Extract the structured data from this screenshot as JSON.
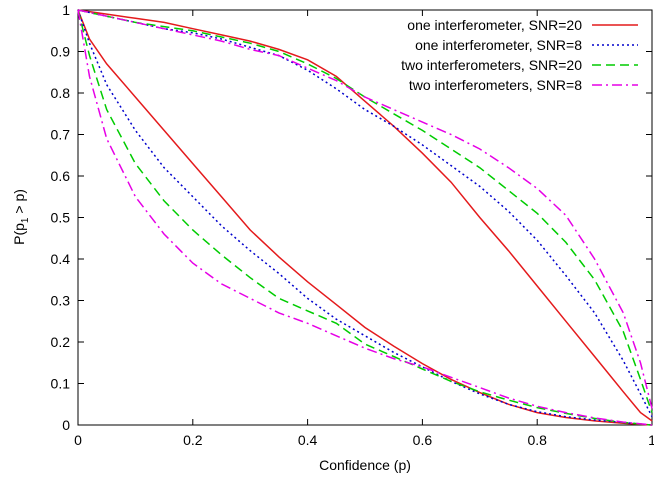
{
  "chart_data": {
    "type": "line",
    "title": "",
    "xlabel": "Confidence (p)",
    "ylabel_main": "P(p",
    "ylabel_sub": "1",
    "ylabel_tail": " > p)",
    "xlim": [
      0,
      1
    ],
    "ylim": [
      0,
      1
    ],
    "x_ticks": [
      0,
      0.2,
      0.4,
      0.6,
      0.8,
      1
    ],
    "y_ticks": [
      0,
      0.1,
      0.2,
      0.3,
      0.4,
      0.5,
      0.6,
      0.7,
      0.8,
      0.9,
      1
    ],
    "x_tick_labels": [
      "0",
      "0.2",
      "0.4",
      "0.6",
      "0.8",
      "1"
    ],
    "y_tick_labels": [
      "0",
      "0.1",
      "0.2",
      "0.3",
      "0.4",
      "0.5",
      "0.6",
      "0.7",
      "0.8",
      "0.9",
      "1"
    ],
    "legend_position": "top-right",
    "grid": false,
    "series": [
      {
        "name": "one interferometer, SNR=20",
        "color": "#e41a1c",
        "dash": "solid",
        "upper": [
          [
            0,
            1
          ],
          [
            0.05,
            0.99
          ],
          [
            0.1,
            0.98
          ],
          [
            0.15,
            0.97
          ],
          [
            0.2,
            0.955
          ],
          [
            0.25,
            0.94
          ],
          [
            0.3,
            0.925
          ],
          [
            0.35,
            0.905
          ],
          [
            0.4,
            0.88
          ],
          [
            0.45,
            0.84
          ],
          [
            0.5,
            0.78
          ],
          [
            0.55,
            0.72
          ],
          [
            0.6,
            0.655
          ],
          [
            0.65,
            0.585
          ],
          [
            0.7,
            0.5
          ],
          [
            0.75,
            0.42
          ],
          [
            0.8,
            0.335
          ],
          [
            0.85,
            0.25
          ],
          [
            0.9,
            0.165
          ],
          [
            0.95,
            0.08
          ],
          [
            0.98,
            0.03
          ],
          [
            1,
            0.01
          ]
        ],
        "lower": [
          [
            0,
            1
          ],
          [
            0.02,
            0.93
          ],
          [
            0.05,
            0.87
          ],
          [
            0.1,
            0.79
          ],
          [
            0.15,
            0.71
          ],
          [
            0.2,
            0.63
          ],
          [
            0.25,
            0.55
          ],
          [
            0.3,
            0.47
          ],
          [
            0.35,
            0.405
          ],
          [
            0.4,
            0.345
          ],
          [
            0.45,
            0.29
          ],
          [
            0.5,
            0.235
          ],
          [
            0.55,
            0.19
          ],
          [
            0.6,
            0.148
          ],
          [
            0.65,
            0.11
          ],
          [
            0.7,
            0.078
          ],
          [
            0.75,
            0.05
          ],
          [
            0.8,
            0.03
          ],
          [
            0.85,
            0.018
          ],
          [
            0.9,
            0.01
          ],
          [
            0.95,
            0.004
          ],
          [
            1,
            0
          ]
        ]
      },
      {
        "name": "one interferometer, SNR=8",
        "color": "#0000cc",
        "dash": "dotted",
        "upper": [
          [
            0,
            1
          ],
          [
            0.05,
            0.985
          ],
          [
            0.1,
            0.97
          ],
          [
            0.15,
            0.955
          ],
          [
            0.2,
            0.945
          ],
          [
            0.25,
            0.93
          ],
          [
            0.3,
            0.91
          ],
          [
            0.35,
            0.89
          ],
          [
            0.4,
            0.855
          ],
          [
            0.45,
            0.81
          ],
          [
            0.5,
            0.76
          ],
          [
            0.55,
            0.72
          ],
          [
            0.6,
            0.675
          ],
          [
            0.65,
            0.625
          ],
          [
            0.7,
            0.575
          ],
          [
            0.75,
            0.515
          ],
          [
            0.8,
            0.445
          ],
          [
            0.85,
            0.36
          ],
          [
            0.9,
            0.27
          ],
          [
            0.95,
            0.155
          ],
          [
            0.98,
            0.075
          ],
          [
            1,
            0.02
          ]
        ],
        "lower": [
          [
            0,
            1
          ],
          [
            0.02,
            0.92
          ],
          [
            0.05,
            0.82
          ],
          [
            0.1,
            0.71
          ],
          [
            0.15,
            0.62
          ],
          [
            0.2,
            0.55
          ],
          [
            0.25,
            0.48
          ],
          [
            0.3,
            0.42
          ],
          [
            0.35,
            0.365
          ],
          [
            0.4,
            0.305
          ],
          [
            0.45,
            0.255
          ],
          [
            0.5,
            0.215
          ],
          [
            0.55,
            0.175
          ],
          [
            0.6,
            0.14
          ],
          [
            0.65,
            0.105
          ],
          [
            0.7,
            0.075
          ],
          [
            0.75,
            0.05
          ],
          [
            0.8,
            0.032
          ],
          [
            0.85,
            0.02
          ],
          [
            0.9,
            0.012
          ],
          [
            0.95,
            0.006
          ],
          [
            1,
            0
          ]
        ]
      },
      {
        "name": "two interferometers, SNR=20",
        "color": "#00cc00",
        "dash": "dashed",
        "upper": [
          [
            0,
            1
          ],
          [
            0.05,
            0.985
          ],
          [
            0.1,
            0.97
          ],
          [
            0.15,
            0.96
          ],
          [
            0.2,
            0.95
          ],
          [
            0.25,
            0.935
          ],
          [
            0.3,
            0.92
          ],
          [
            0.35,
            0.9
          ],
          [
            0.4,
            0.87
          ],
          [
            0.45,
            0.835
          ],
          [
            0.5,
            0.79
          ],
          [
            0.55,
            0.75
          ],
          [
            0.6,
            0.71
          ],
          [
            0.65,
            0.665
          ],
          [
            0.7,
            0.62
          ],
          [
            0.75,
            0.565
          ],
          [
            0.8,
            0.51
          ],
          [
            0.85,
            0.44
          ],
          [
            0.9,
            0.35
          ],
          [
            0.95,
            0.225
          ],
          [
            0.98,
            0.11
          ],
          [
            1,
            0.03
          ]
        ],
        "lower": [
          [
            0,
            1
          ],
          [
            0.02,
            0.89
          ],
          [
            0.05,
            0.76
          ],
          [
            0.1,
            0.63
          ],
          [
            0.15,
            0.54
          ],
          [
            0.2,
            0.47
          ],
          [
            0.25,
            0.41
          ],
          [
            0.3,
            0.355
          ],
          [
            0.35,
            0.305
          ],
          [
            0.4,
            0.275
          ],
          [
            0.45,
            0.245
          ],
          [
            0.5,
            0.195
          ],
          [
            0.55,
            0.165
          ],
          [
            0.6,
            0.135
          ],
          [
            0.65,
            0.105
          ],
          [
            0.7,
            0.08
          ],
          [
            0.75,
            0.06
          ],
          [
            0.8,
            0.042
          ],
          [
            0.85,
            0.028
          ],
          [
            0.9,
            0.016
          ],
          [
            0.95,
            0.006
          ],
          [
            1,
            0
          ]
        ]
      },
      {
        "name": "two interferometers, SNR=8",
        "color": "#e600e6",
        "dash": "dashdot",
        "upper": [
          [
            0,
            1
          ],
          [
            0.05,
            0.985
          ],
          [
            0.1,
            0.97
          ],
          [
            0.15,
            0.955
          ],
          [
            0.2,
            0.94
          ],
          [
            0.25,
            0.925
          ],
          [
            0.3,
            0.905
          ],
          [
            0.35,
            0.89
          ],
          [
            0.4,
            0.86
          ],
          [
            0.45,
            0.83
          ],
          [
            0.5,
            0.79
          ],
          [
            0.55,
            0.76
          ],
          [
            0.6,
            0.73
          ],
          [
            0.65,
            0.7
          ],
          [
            0.7,
            0.665
          ],
          [
            0.75,
            0.62
          ],
          [
            0.8,
            0.57
          ],
          [
            0.85,
            0.505
          ],
          [
            0.9,
            0.4
          ],
          [
            0.95,
            0.27
          ],
          [
            0.98,
            0.15
          ],
          [
            1,
            0.04
          ]
        ],
        "lower": [
          [
            0,
            1
          ],
          [
            0.02,
            0.84
          ],
          [
            0.05,
            0.69
          ],
          [
            0.1,
            0.55
          ],
          [
            0.15,
            0.46
          ],
          [
            0.2,
            0.39
          ],
          [
            0.25,
            0.34
          ],
          [
            0.3,
            0.305
          ],
          [
            0.35,
            0.27
          ],
          [
            0.4,
            0.245
          ],
          [
            0.45,
            0.215
          ],
          [
            0.5,
            0.185
          ],
          [
            0.55,
            0.16
          ],
          [
            0.6,
            0.14
          ],
          [
            0.65,
            0.115
          ],
          [
            0.7,
            0.09
          ],
          [
            0.75,
            0.065
          ],
          [
            0.8,
            0.045
          ],
          [
            0.85,
            0.03
          ],
          [
            0.9,
            0.017
          ],
          [
            0.95,
            0.007
          ],
          [
            1,
            0
          ]
        ]
      }
    ]
  }
}
